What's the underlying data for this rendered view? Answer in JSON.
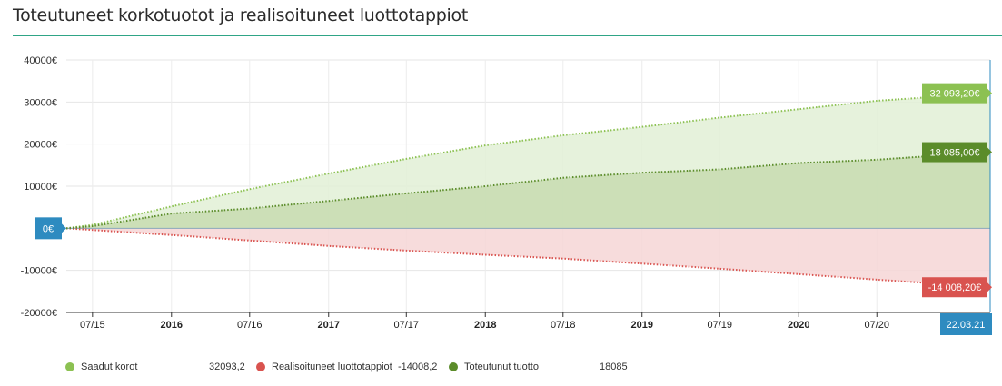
{
  "title": "Toteutuneet korkotuotot ja realisoituneet luottotappiot",
  "chart_data": {
    "type": "area",
    "x_start": "2015-05-01",
    "x_end": "2021-03-22",
    "ylim": [
      -20000,
      40000
    ],
    "yticks": [
      {
        "value": 40000,
        "label": "40000€"
      },
      {
        "value": 30000,
        "label": "30000€"
      },
      {
        "value": 20000,
        "label": "20000€"
      },
      {
        "value": 10000,
        "label": "10000€"
      },
      {
        "value": 0,
        "label": "0"
      },
      {
        "value": -10000,
        "label": "-10000€"
      },
      {
        "value": -20000,
        "label": "-20000€"
      }
    ],
    "xticks": [
      {
        "date": "2015-07-01",
        "label": "07/15",
        "bold": false
      },
      {
        "date": "2016-01-01",
        "label": "2016",
        "bold": true
      },
      {
        "date": "2016-07-01",
        "label": "07/16",
        "bold": false
      },
      {
        "date": "2017-01-01",
        "label": "2017",
        "bold": true
      },
      {
        "date": "2017-07-01",
        "label": "07/17",
        "bold": false
      },
      {
        "date": "2018-01-01",
        "label": "2018",
        "bold": true
      },
      {
        "date": "2018-07-01",
        "label": "07/18",
        "bold": false
      },
      {
        "date": "2019-01-01",
        "label": "2019",
        "bold": true
      },
      {
        "date": "2019-07-01",
        "label": "07/19",
        "bold": false
      },
      {
        "date": "2020-01-01",
        "label": "2020",
        "bold": true
      },
      {
        "date": "2020-07-01",
        "label": "07/20",
        "bold": false
      }
    ],
    "grid": true,
    "series": [
      {
        "name": "Saadut korot",
        "color": "#8cc152",
        "fill": "#e2f0d6",
        "end_label": "32 093,20€",
        "legend_value": "32093,2",
        "points": [
          [
            "2015-05-01",
            0
          ],
          [
            "2015-07-01",
            800
          ],
          [
            "2016-01-01",
            5200
          ],
          [
            "2016-07-01",
            9300
          ],
          [
            "2017-01-01",
            13000
          ],
          [
            "2017-07-01",
            16500
          ],
          [
            "2018-01-01",
            19700
          ],
          [
            "2018-07-01",
            22100
          ],
          [
            "2019-01-01",
            24100
          ],
          [
            "2019-07-01",
            26300
          ],
          [
            "2020-01-01",
            28300
          ],
          [
            "2020-07-01",
            30300
          ],
          [
            "2021-03-22",
            32093.2
          ]
        ]
      },
      {
        "name": "Realisoituneet luottotappiot",
        "color": "#d9534f",
        "fill": "#f6d6d6",
        "end_label": "-14 008,20€",
        "legend_value": "-14008,2",
        "points": [
          [
            "2015-05-01",
            0
          ],
          [
            "2015-07-01",
            -400
          ],
          [
            "2016-01-01",
            -1600
          ],
          [
            "2016-07-01",
            -2900
          ],
          [
            "2017-01-01",
            -4200
          ],
          [
            "2017-07-01",
            -5300
          ],
          [
            "2018-01-01",
            -6300
          ],
          [
            "2018-07-01",
            -7200
          ],
          [
            "2019-01-01",
            -8400
          ],
          [
            "2019-07-01",
            -9600
          ],
          [
            "2020-01-01",
            -10900
          ],
          [
            "2020-07-01",
            -12200
          ],
          [
            "2021-03-22",
            -14008.2
          ]
        ]
      },
      {
        "name": "Toteutunut tuotto",
        "color": "#5b8c2a",
        "fill": "#c7dcb0",
        "end_label": "18 085,00€",
        "legend_value": "18085",
        "points": [
          [
            "2015-05-01",
            0
          ],
          [
            "2015-07-01",
            500
          ],
          [
            "2016-01-01",
            3500
          ],
          [
            "2016-07-01",
            4700
          ],
          [
            "2017-01-01",
            6500
          ],
          [
            "2017-07-01",
            8300
          ],
          [
            "2018-01-01",
            10000
          ],
          [
            "2018-07-01",
            12000
          ],
          [
            "2019-01-01",
            13200
          ],
          [
            "2019-07-01",
            14000
          ],
          [
            "2020-01-01",
            15500
          ],
          [
            "2020-07-01",
            16300
          ],
          [
            "2021-03-22",
            18085
          ]
        ]
      }
    ],
    "zero_label": "0€",
    "date_label": "22.03.21"
  }
}
